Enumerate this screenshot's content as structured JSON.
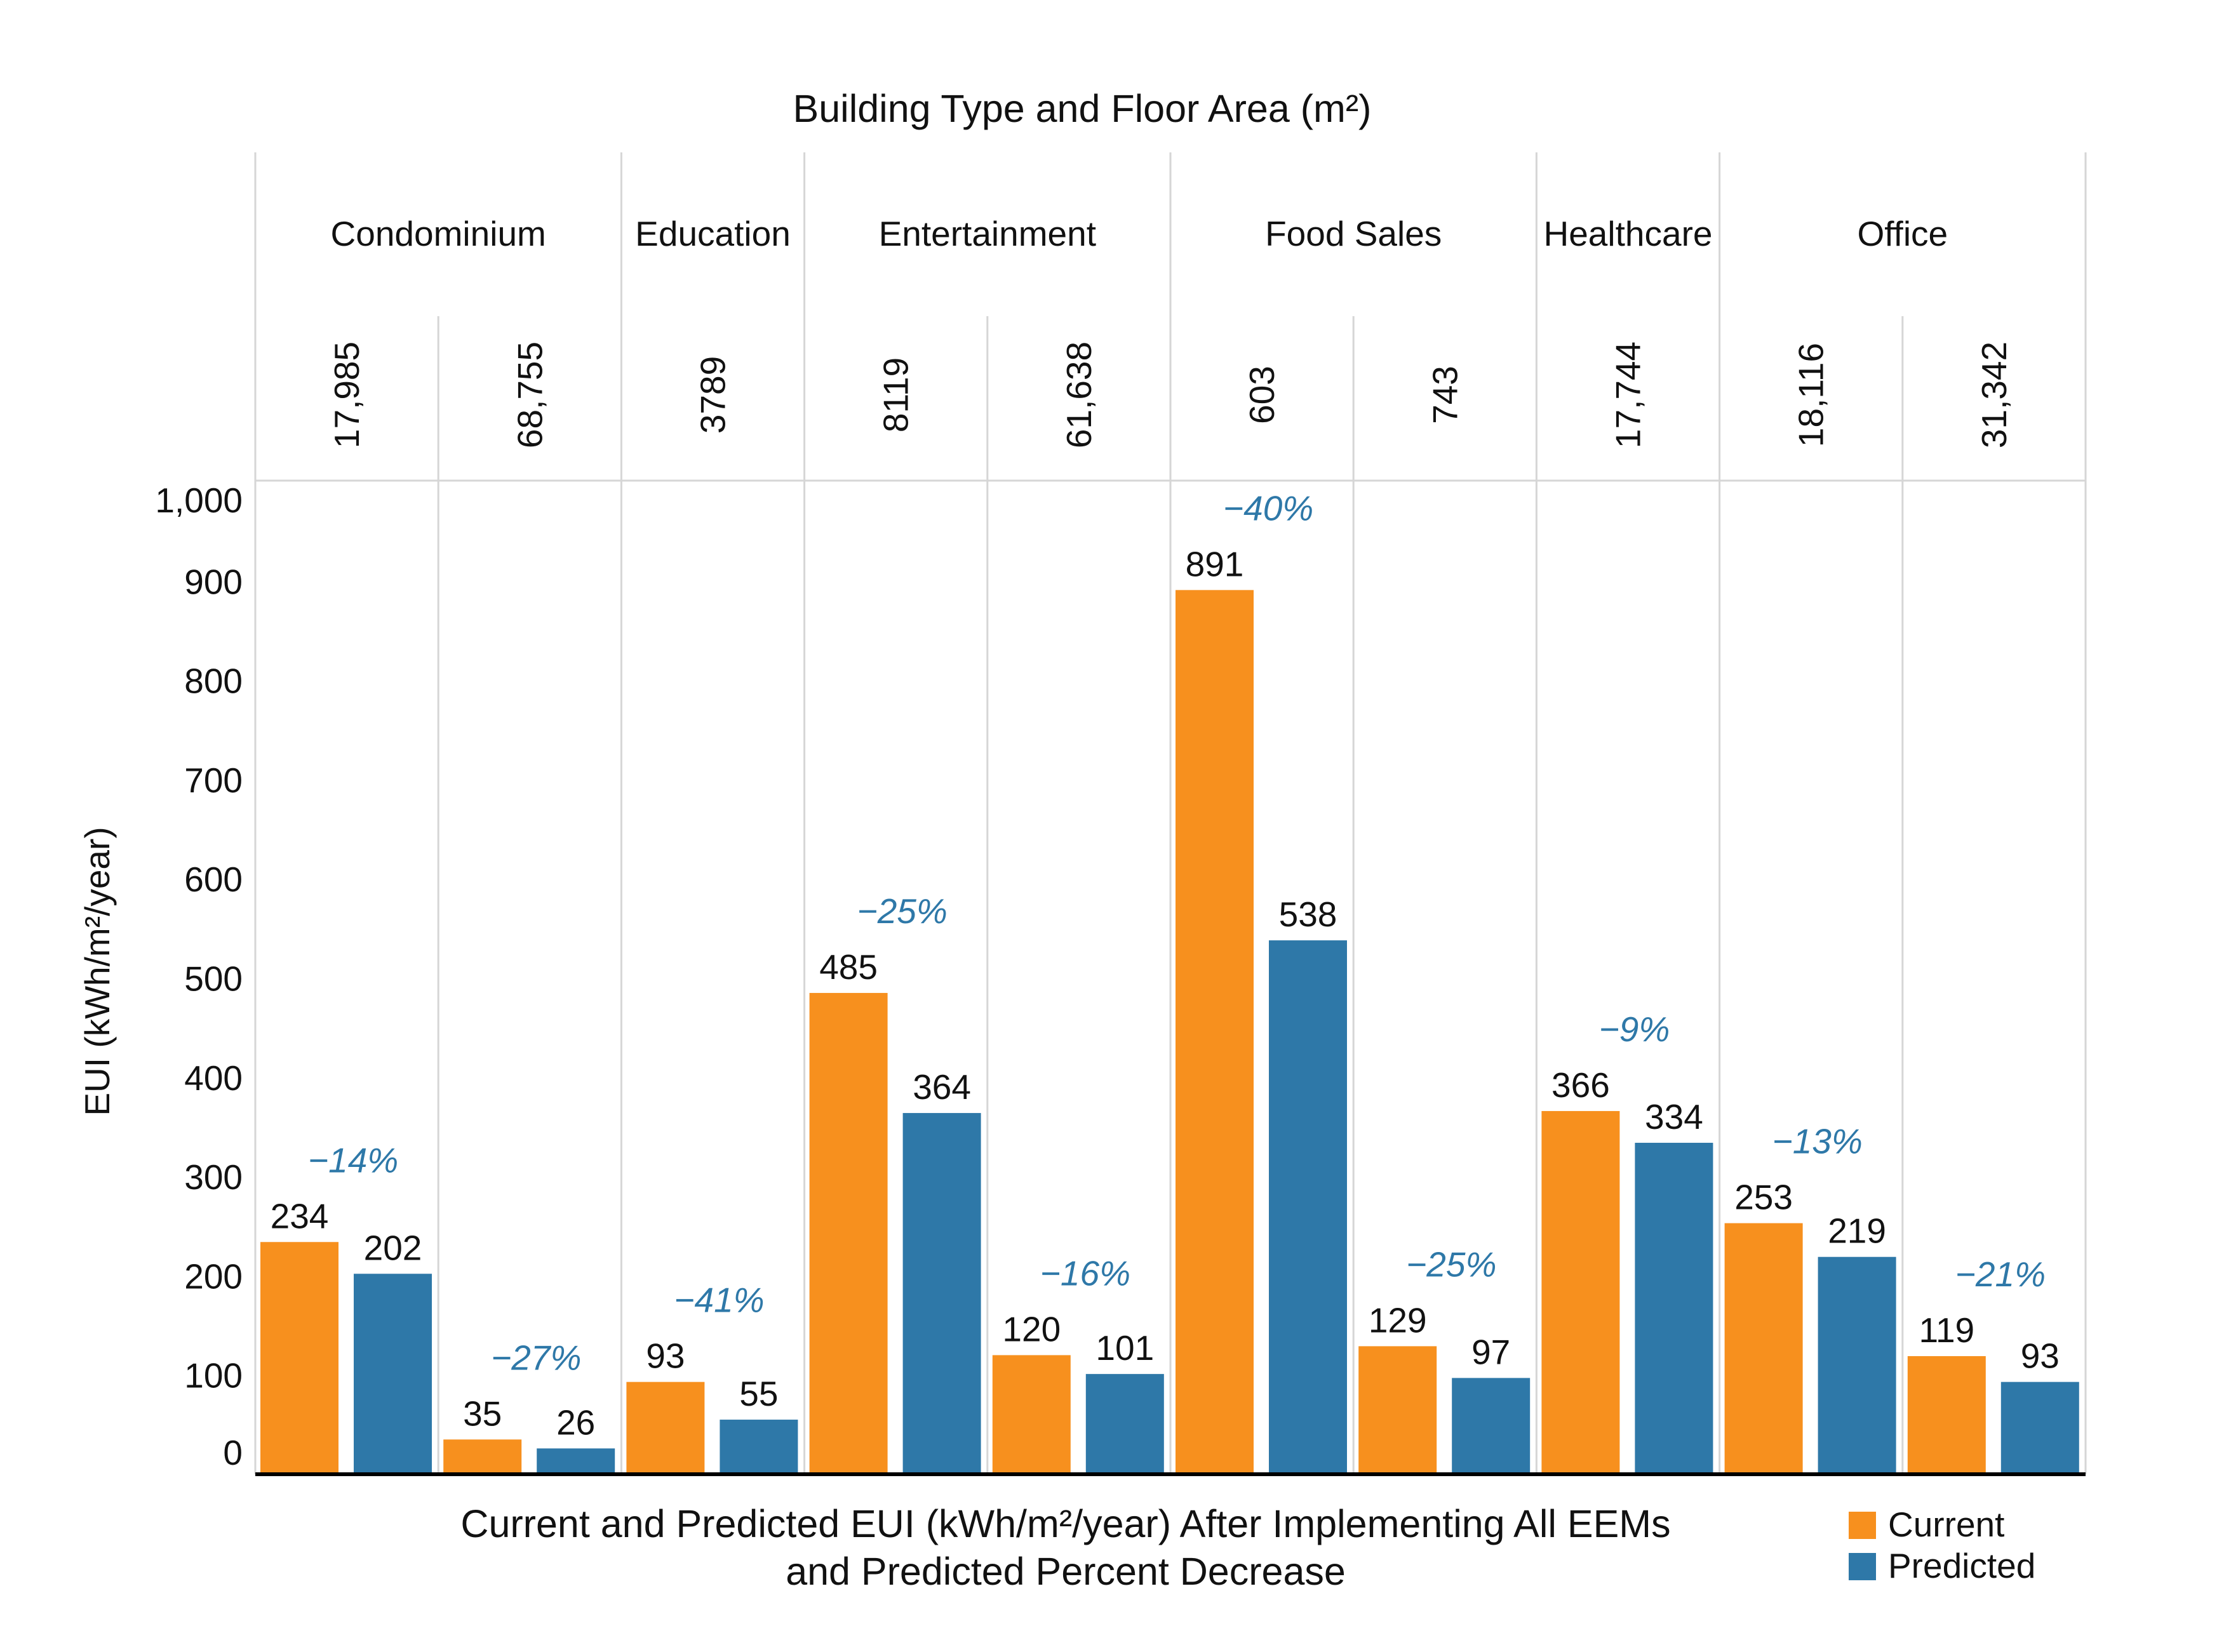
{
  "chart_data": {
    "type": "bar",
    "title": "Building Type and Floor Area (m²)",
    "xlabel": "Current and Predicted EUI (kWh/m²/year) After Implementing All EEMs\nand Predicted Percent Decrease",
    "xlabel_lines": [
      "Current and Predicted EUI (kWh/m²/year) After Implementing All EEMs",
      "and Predicted Percent Decrease"
    ],
    "ylabel": "EUI (kWh/m²/year)",
    "ylim": [
      0,
      1000
    ],
    "yticks": [
      {
        "value": 0,
        "label": "0"
      },
      {
        "value": 100,
        "label": "100"
      },
      {
        "value": 200,
        "label": "200"
      },
      {
        "value": 300,
        "label": "300"
      },
      {
        "value": 400,
        "label": "400"
      },
      {
        "value": 500,
        "label": "500"
      },
      {
        "value": 600,
        "label": "600"
      },
      {
        "value": 700,
        "label": "700"
      },
      {
        "value": 800,
        "label": "800"
      },
      {
        "value": 900,
        "label": "900"
      },
      {
        "value": 1000,
        "label": "1,000"
      }
    ],
    "building_types": [
      {
        "name": "Condominium",
        "count": 2
      },
      {
        "name": "Education",
        "count": 1
      },
      {
        "name": "Entertainment",
        "count": 2
      },
      {
        "name": "Food Sales",
        "count": 2
      },
      {
        "name": "Healthcare",
        "count": 1
      },
      {
        "name": "Office",
        "count": 2
      }
    ],
    "categories": [
      "17,985",
      "68,755",
      "3789",
      "8119",
      "61,638",
      "603",
      "743",
      "17,744",
      "18,116",
      "31,342"
    ],
    "series": [
      {
        "name": "Current",
        "color": "#f7901e",
        "values": [
          234,
          35,
          93,
          485,
          120,
          891,
          129,
          366,
          253,
          119
        ]
      },
      {
        "name": "Predicted",
        "color": "#2e78a8",
        "values": [
          202,
          26,
          55,
          364,
          101,
          538,
          97,
          334,
          219,
          93
        ]
      }
    ],
    "percent_decrease": [
      "−14%",
      "−27%",
      "−41%",
      "−25%",
      "−16%",
      "−40%",
      "−25%",
      "−9%",
      "−13%",
      "−21%"
    ],
    "percent_color": "#2e78a8",
    "legend": {
      "position": "bottom-right",
      "entries": [
        "Current",
        "Predicted"
      ]
    },
    "grid": {
      "vertical_separators": true,
      "horizontal": false
    }
  }
}
